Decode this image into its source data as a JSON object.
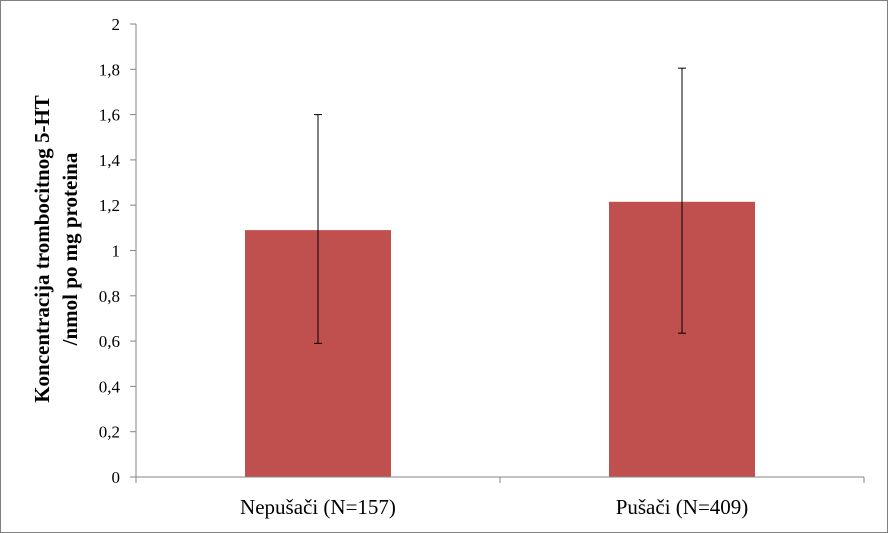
{
  "chart_data": {
    "type": "bar",
    "title": "",
    "xlabel": "",
    "ylabel": [
      "Koncentracija  trombocitnog 5-HT",
      "/nmol po mg proteina"
    ],
    "categories": [
      "Nepušači (N=157)",
      "Pušači (N=409)"
    ],
    "series": [
      {
        "values": [
          1.09,
          1.215
        ],
        "error_low": [
          0.59,
          0.635
        ],
        "error_high": [
          1.6,
          1.805
        ]
      }
    ],
    "ylim": [
      0,
      2
    ],
    "yticks": [
      0,
      0.2,
      0.4,
      0.6,
      0.8,
      1,
      1.2,
      1.4,
      1.6,
      1.8,
      2
    ],
    "ytick_labels": [
      "0",
      "0,2",
      "0,4",
      "0,6",
      "0,8",
      "1",
      "1,2",
      "1,4",
      "1,6",
      "1,8",
      "2"
    ],
    "grid": false,
    "legend": "none",
    "bar_color": "#C0504D",
    "axis_color": "#868686",
    "errorbar_color": "#000000"
  }
}
